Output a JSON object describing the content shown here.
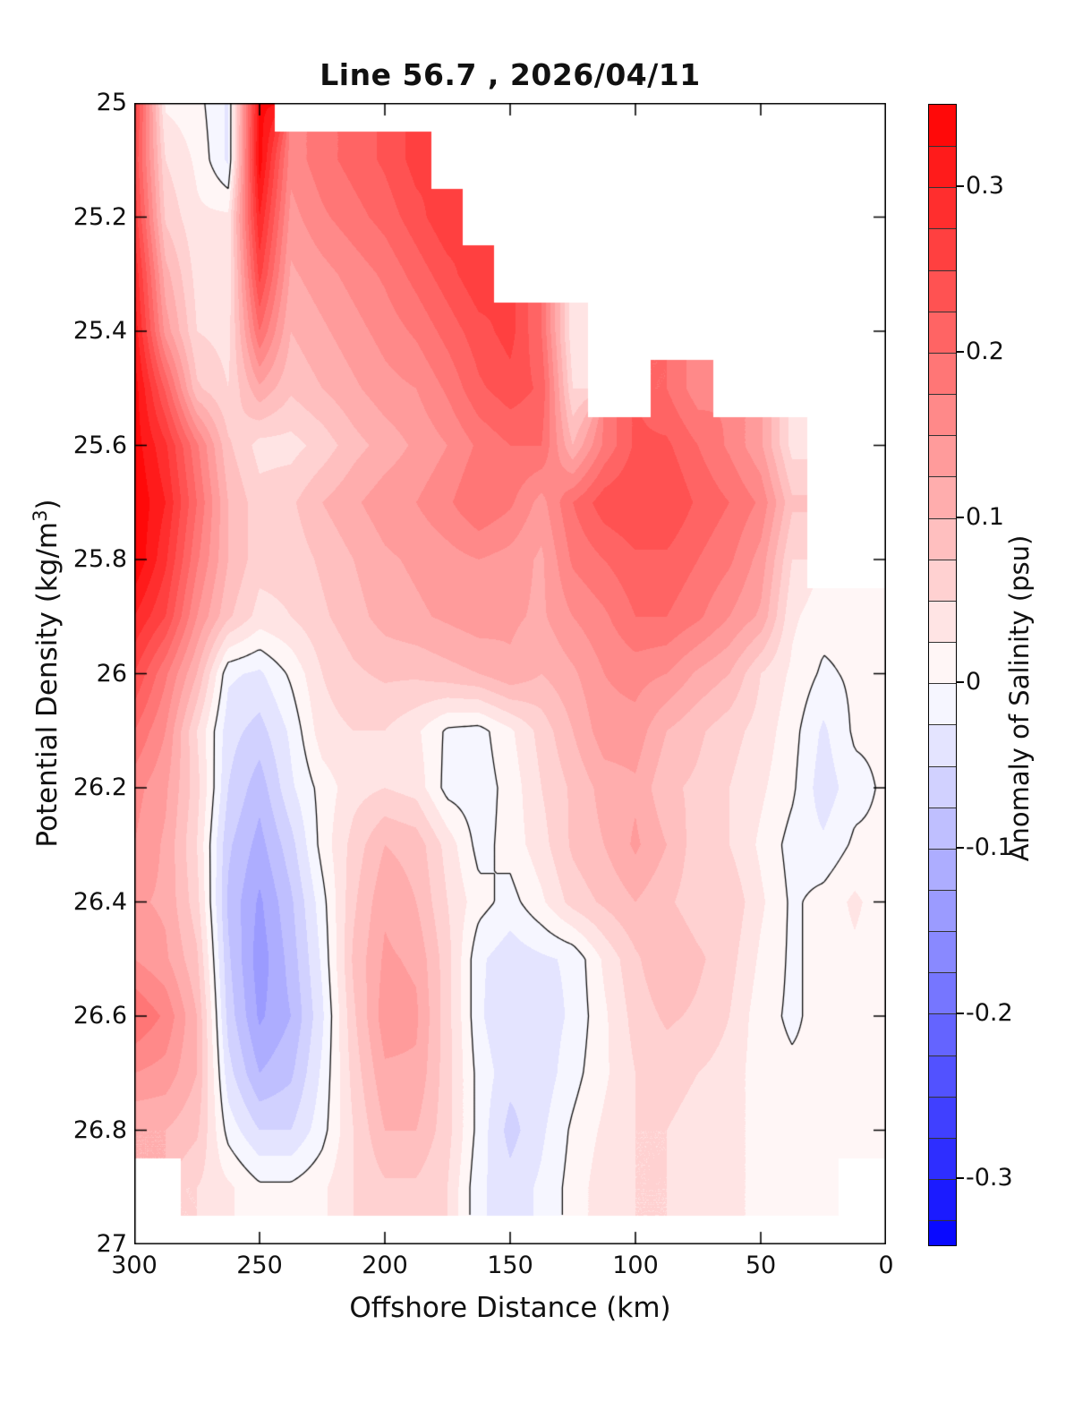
{
  "title": "Line 56.7 , 2026/04/11",
  "axes": {
    "xlabel": "Offshore Distance (km)",
    "ylabel_prefix": "Potential Density (kg/m",
    "ylabel_sup": "3",
    "ylabel_suffix": ")",
    "x_ticks": [
      300,
      250,
      200,
      150,
      100,
      50,
      0
    ],
    "y_ticks": [
      25,
      25.2,
      25.4,
      25.6,
      25.8,
      26,
      26.2,
      26.4,
      26.6,
      26.8,
      27
    ],
    "x_range": [
      300,
      0
    ],
    "y_range": [
      25,
      27
    ]
  },
  "colorbar": {
    "label": "Anomaly of Salinity (psu)",
    "tick_values": [
      0.3,
      0.2,
      0.1,
      0,
      -0.1,
      -0.2,
      -0.3
    ],
    "tick_labels": [
      "0.3",
      "0.2",
      "0.1",
      "0",
      "-0.1",
      "-0.2",
      "-0.3"
    ],
    "vmax": 0.35,
    "vmin": -0.34,
    "interval": 0.025,
    "positive_color": "#ff0000",
    "negative_color": "#0000ff",
    "zero_color": "#ffffff",
    "line_color": "#333333"
  },
  "chart_data": {
    "type": "filled_contour",
    "xlabel": "Offshore Distance (km)",
    "ylabel": "Potential Density (kg/m3)",
    "title": "Line 56.7 , 2026/04/11",
    "contour_interval": 0.025,
    "zero_contour_color": "#101010",
    "x_km": [
      300,
      287.5,
      275,
      262.5,
      250,
      237.5,
      225,
      212.5,
      200,
      187.5,
      175,
      162.5,
      150,
      137.5,
      125,
      112.5,
      100,
      87.5,
      75,
      62.5,
      50,
      37.5,
      25,
      12.5,
      0
    ],
    "y_density": [
      25,
      25.1,
      25.2,
      25.3,
      25.4,
      25.5,
      25.6,
      25.7,
      25.8,
      25.9,
      26,
      26.1,
      26.2,
      26.3,
      26.4,
      26.5,
      26.6,
      26.7,
      26.8,
      26.9,
      27
    ],
    "values": [
      [
        0.27,
        0.02,
        0.01,
        -0.03,
        0.33,
        null,
        null,
        null,
        null,
        null,
        null,
        null,
        null,
        null,
        null,
        null,
        null,
        null,
        null,
        null,
        null,
        null,
        null,
        null,
        null
      ],
      [
        0.25,
        0.05,
        0.02,
        -0.03,
        0.34,
        0.16,
        0.19,
        0.21,
        0.23,
        0.26,
        null,
        null,
        null,
        null,
        null,
        null,
        null,
        null,
        null,
        null,
        null,
        null,
        null,
        null,
        null
      ],
      [
        0.27,
        0.07,
        0.03,
        0.03,
        0.3,
        0.14,
        0.17,
        0.19,
        0.21,
        0.24,
        0.27,
        null,
        null,
        null,
        null,
        null,
        null,
        null,
        null,
        null,
        null,
        null,
        null,
        null,
        null
      ],
      [
        0.3,
        0.11,
        0.04,
        0.03,
        0.26,
        0.12,
        0.14,
        0.16,
        0.18,
        0.21,
        0.24,
        0.27,
        null,
        null,
        null,
        null,
        null,
        null,
        null,
        null,
        null,
        null,
        null,
        null,
        null
      ],
      [
        0.32,
        0.14,
        0.05,
        0.04,
        0.2,
        0.1,
        0.12,
        0.14,
        0.16,
        0.18,
        0.21,
        0.24,
        0.26,
        0.2,
        0.03,
        null,
        null,
        null,
        null,
        null,
        null,
        null,
        null,
        null,
        null
      ],
      [
        0.34,
        0.22,
        0.08,
        0.05,
        0.12,
        0.08,
        0.1,
        0.12,
        0.14,
        0.15,
        0.18,
        0.22,
        0.24,
        0.22,
        0.05,
        null,
        null,
        0.2,
        0.16,
        null,
        null,
        null,
        null,
        null,
        null
      ],
      [
        0.34,
        0.28,
        0.18,
        0.08,
        0.04,
        0.04,
        0.06,
        0.09,
        0.11,
        0.13,
        0.15,
        0.18,
        0.2,
        0.2,
        0.1,
        0.18,
        0.23,
        0.23,
        0.2,
        0.17,
        0.13,
        0.04,
        null,
        null,
        null
      ],
      [
        0.35,
        0.3,
        0.2,
        0.1,
        0.06,
        0.07,
        0.1,
        0.12,
        0.14,
        0.15,
        0.17,
        0.2,
        0.18,
        0.14,
        0.2,
        0.24,
        0.25,
        0.25,
        0.22,
        0.2,
        0.17,
        0.08,
        null,
        null,
        null
      ],
      [
        0.35,
        0.28,
        0.18,
        0.1,
        0.06,
        0.06,
        0.08,
        0.1,
        0.12,
        0.13,
        0.14,
        0.15,
        0.14,
        0.12,
        0.18,
        0.2,
        0.22,
        0.22,
        0.2,
        0.18,
        0.14,
        0.05,
        null,
        null,
        null
      ],
      [
        0.3,
        0.25,
        0.15,
        0.08,
        0.04,
        0.05,
        0.07,
        0.09,
        0.11,
        0.12,
        0.13,
        0.14,
        0.13,
        0.12,
        0.15,
        0.17,
        0.2,
        0.2,
        0.18,
        0.15,
        0.12,
        0.03,
        0.01,
        0.01,
        0.01
      ],
      [
        0.25,
        0.18,
        0.1,
        -0.02,
        -0.03,
        0.005,
        0.05,
        0.07,
        0.08,
        0.08,
        0.09,
        0.1,
        0.12,
        0.1,
        0.12,
        0.15,
        0.16,
        0.15,
        0.12,
        0.1,
        0.05,
        0.02,
        -0.005,
        0.005,
        0.005
      ],
      [
        0.2,
        0.15,
        0.05,
        -0.04,
        -0.06,
        -0.02,
        0.04,
        0.05,
        0.05,
        0.03,
        -0.005,
        -0.01,
        0.02,
        0.06,
        0.1,
        0.14,
        0.14,
        0.1,
        0.08,
        0.06,
        0.04,
        0.01,
        -0.03,
        0.005,
        0.005
      ],
      [
        0.16,
        0.13,
        0.06,
        -0.05,
        -0.09,
        -0.03,
        0.01,
        0.04,
        0.05,
        0.04,
        -0.01,
        -0.015,
        0.01,
        0.05,
        0.08,
        0.11,
        0.12,
        0.08,
        0.07,
        0.05,
        0.03,
        0.005,
        -0.04,
        -0.01,
        0.005
      ],
      [
        0.15,
        0.12,
        0.05,
        -0.07,
        -0.11,
        -0.06,
        0.01,
        0.06,
        0.1,
        0.09,
        0.04,
        -0.01,
        0.01,
        0.04,
        0.08,
        0.1,
        0.13,
        0.1,
        0.06,
        0.05,
        0.02,
        -0.01,
        -0.02,
        0.005,
        0.005
      ],
      [
        0.13,
        0.12,
        0.06,
        -0.08,
        -0.13,
        -0.08,
        -0.01,
        0.07,
        0.12,
        0.1,
        0.05,
        0.01,
        -0.01,
        0.02,
        0.06,
        0.08,
        0.1,
        0.08,
        0.06,
        0.07,
        0.03,
        -0.005,
        0.01,
        0.03,
        0.01
      ],
      [
        0.15,
        0.13,
        0.08,
        -0.07,
        -0.14,
        -0.09,
        -0.02,
        0.08,
        0.13,
        0.12,
        0.06,
        -0.02,
        -0.04,
        -0.03,
        -0.02,
        0.03,
        0.07,
        0.1,
        0.08,
        0.06,
        0.02,
        -0.005,
        0.01,
        0.02,
        0.01
      ],
      [
        0.2,
        0.17,
        0.1,
        -0.06,
        -0.13,
        -0.1,
        -0.03,
        0.07,
        0.14,
        0.13,
        0.06,
        -0.02,
        -0.05,
        -0.04,
        -0.02,
        0.02,
        0.06,
        0.08,
        0.07,
        0.05,
        0.01,
        -0.005,
        0.01,
        0.02,
        0.01
      ],
      [
        0.15,
        0.14,
        0.1,
        -0.04,
        -0.1,
        -0.08,
        -0.02,
        0.06,
        0.12,
        0.12,
        0.06,
        -0.01,
        -0.04,
        -0.04,
        -0.01,
        0.02,
        0.05,
        0.06,
        0.05,
        0.04,
        0.01,
        0.005,
        0.005,
        0.01,
        0.005
      ],
      [
        0.1,
        0.1,
        0.08,
        -0.01,
        -0.05,
        -0.05,
        -0.01,
        0.05,
        0.1,
        0.1,
        0.06,
        -0.01,
        -0.06,
        -0.03,
        0.005,
        0.03,
        0.05,
        0.05,
        0.04,
        0.04,
        0.01,
        0.005,
        0.005,
        0.005,
        0.005
      ],
      [
        null,
        null,
        0.05,
        0.03,
        0.005,
        0.005,
        0.02,
        0.05,
        0.07,
        0.07,
        0.05,
        -0.02,
        -0.04,
        -0.02,
        0.01,
        0.04,
        0.05,
        0.05,
        0.04,
        0.03,
        0.02,
        0.005,
        0.005,
        null,
        null
      ],
      [
        null,
        null,
        null,
        null,
        null,
        null,
        null,
        null,
        null,
        null,
        null,
        null,
        null,
        null,
        null,
        null,
        null,
        null,
        null,
        null,
        null,
        null,
        null,
        null,
        null
      ]
    ]
  }
}
